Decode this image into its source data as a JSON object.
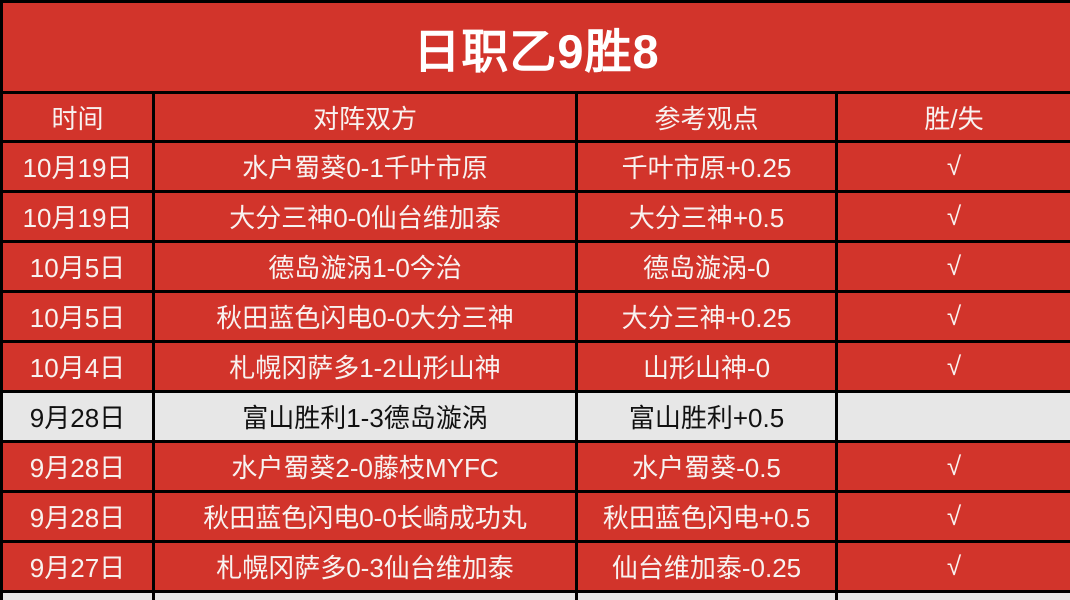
{
  "title": "日职乙9胜8",
  "columns": [
    "时间",
    "对阵双方",
    "参考观点",
    "胜/失"
  ],
  "check_icon": "√",
  "rows": [
    {
      "date": "10月19日",
      "match": "水户蜀葵0-1千叶市原",
      "pick": "千叶市原+0.25",
      "result": "√",
      "highlight": false
    },
    {
      "date": "10月19日",
      "match": "大分三神0-0仙台维加泰",
      "pick": "大分三神+0.5",
      "result": "√",
      "highlight": false
    },
    {
      "date": "10月5日",
      "match": "德岛漩涡1-0今治",
      "pick": "德岛漩涡-0",
      "result": "√",
      "highlight": false
    },
    {
      "date": "10月5日",
      "match": "秋田蓝色闪电0-0大分三神",
      "pick": "大分三神+0.25",
      "result": "√",
      "highlight": false
    },
    {
      "date": "10月4日",
      "match": "札幌冈萨多1-2山形山神",
      "pick": "山形山神-0",
      "result": "√",
      "highlight": false
    },
    {
      "date": "9月28日",
      "match": "富山胜利1-3德岛漩涡",
      "pick": "富山胜利+0.5",
      "result": "",
      "highlight": true
    },
    {
      "date": "9月28日",
      "match": "水户蜀葵2-0藤枝MYFC",
      "pick": "水户蜀葵-0.5",
      "result": "√",
      "highlight": false
    },
    {
      "date": "9月28日",
      "match": "秋田蓝色闪电0-0长崎成功丸",
      "pick": "秋田蓝色闪电+0.5",
      "result": "√",
      "highlight": false
    },
    {
      "date": "9月27日",
      "match": "札幌冈萨多0-3仙台维加泰",
      "pick": "仙台维加泰-0.25",
      "result": "√",
      "highlight": false
    }
  ],
  "colors": {
    "red": "#d2342b",
    "highlight_bg": "#e7e7e7",
    "border": "#000000",
    "text_light": "#f8f2f0",
    "text_dark": "#111111"
  },
  "chart_data": {
    "type": "table",
    "title": "日职乙9胜8",
    "columns": [
      "时间",
      "对阵双方",
      "参考观点",
      "胜/失"
    ],
    "rows": [
      [
        "10月19日",
        "水户蜀葵0-1千叶市原",
        "千叶市原+0.25",
        "√"
      ],
      [
        "10月19日",
        "大分三神0-0仙台维加泰",
        "大分三神+0.5",
        "√"
      ],
      [
        "10月5日",
        "德岛漩涡1-0今治",
        "德岛漩涡-0",
        "√"
      ],
      [
        "10月5日",
        "秋田蓝色闪电0-0大分三神",
        "大分三神+0.25",
        "√"
      ],
      [
        "10月4日",
        "札幌冈萨多1-2山形山神",
        "山形山神-0",
        "√"
      ],
      [
        "9月28日",
        "富山胜利1-3德岛漩涡",
        "富山胜利+0.5",
        ""
      ],
      [
        "9月28日",
        "水户蜀葵2-0藤枝MYFC",
        "水户蜀葵-0.5",
        "√"
      ],
      [
        "9月28日",
        "秋田蓝色闪电0-0长崎成功丸",
        "秋田蓝色闪电+0.5",
        "√"
      ],
      [
        "9月27日",
        "札幌冈萨多0-3仙台维加泰",
        "仙台维加泰-0.25",
        "√"
      ]
    ],
    "layout": {
      "highlighted_row_index": 5,
      "header_bg": "#d2342b",
      "highlight_bg": "#e7e7e7",
      "grid": true
    }
  }
}
